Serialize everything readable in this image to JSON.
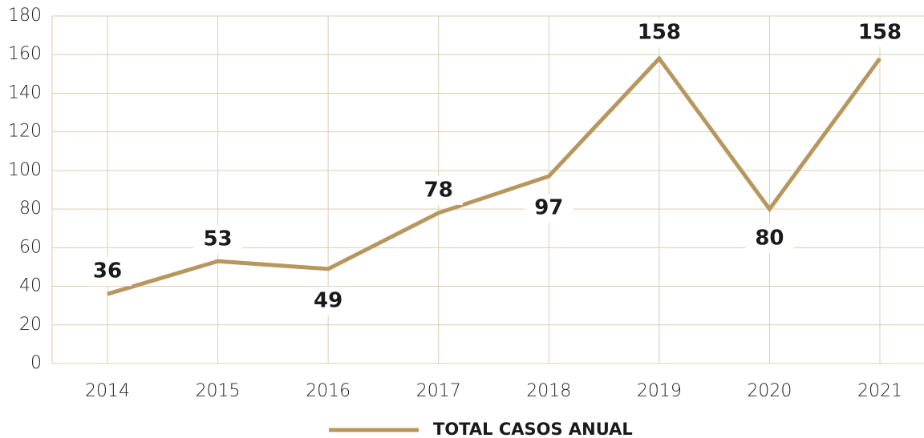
{
  "chart_data": {
    "type": "line",
    "categories": [
      "2014",
      "2015",
      "2016",
      "2017",
      "2018",
      "2019",
      "2020",
      "2021"
    ],
    "series": [
      {
        "name": "TOTAL CASOS ANUAL",
        "color": "#b8975f",
        "values": [
          36,
          53,
          49,
          78,
          97,
          158,
          80,
          158
        ]
      }
    ],
    "ylim": [
      0,
      180
    ],
    "yticks": [
      0,
      20,
      40,
      60,
      80,
      100,
      120,
      140,
      160,
      180
    ],
    "grid": true,
    "legend": "bottom"
  }
}
